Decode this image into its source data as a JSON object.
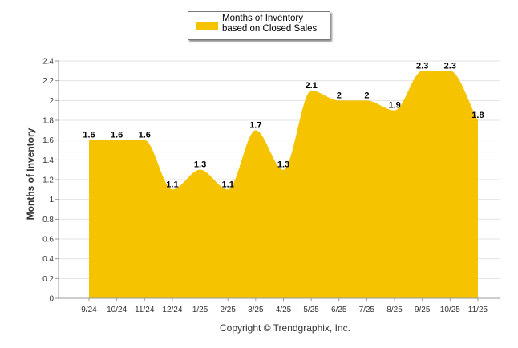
{
  "chart_data": {
    "type": "area",
    "title": "",
    "ylabel": "Months of Inventory",
    "xlabel": "",
    "categories": [
      "9/24",
      "10/24",
      "11/24",
      "12/24",
      "1/25",
      "2/25",
      "3/25",
      "4/25",
      "5/25",
      "6/25",
      "7/25",
      "8/25",
      "9/25",
      "10/25",
      "11/25"
    ],
    "series": [
      {
        "name": "Months of Inventory based on Closed Sales",
        "values": [
          1.6,
          1.6,
          1.6,
          1.1,
          1.3,
          1.1,
          1.7,
          1.3,
          2.1,
          2.0,
          2.0,
          1.9,
          2.3,
          2.3,
          1.8
        ],
        "labels": [
          "1.6",
          "1.6",
          "1.6",
          "1.1",
          "1.3",
          "1.1",
          "1.7",
          "1.3",
          "2.1",
          "2",
          "2",
          "1.9",
          "2.3",
          "2.3",
          "1.8"
        ],
        "color": "#F5C300"
      }
    ],
    "ylim": [
      0,
      2.4
    ],
    "yticks": [
      "0",
      "0.2",
      "0.4",
      "0.6",
      "0.8",
      "1",
      "1.2",
      "1.4",
      "1.6",
      "1.8",
      "2",
      "2.2",
      "2.4"
    ],
    "grid": true,
    "legend_position": "top-center"
  },
  "legend": {
    "label": "Months of Inventory based on Closed Sales",
    "color": "#F5C300"
  },
  "footer": {
    "copyright": "Copyright © Trendgraphix, Inc."
  }
}
